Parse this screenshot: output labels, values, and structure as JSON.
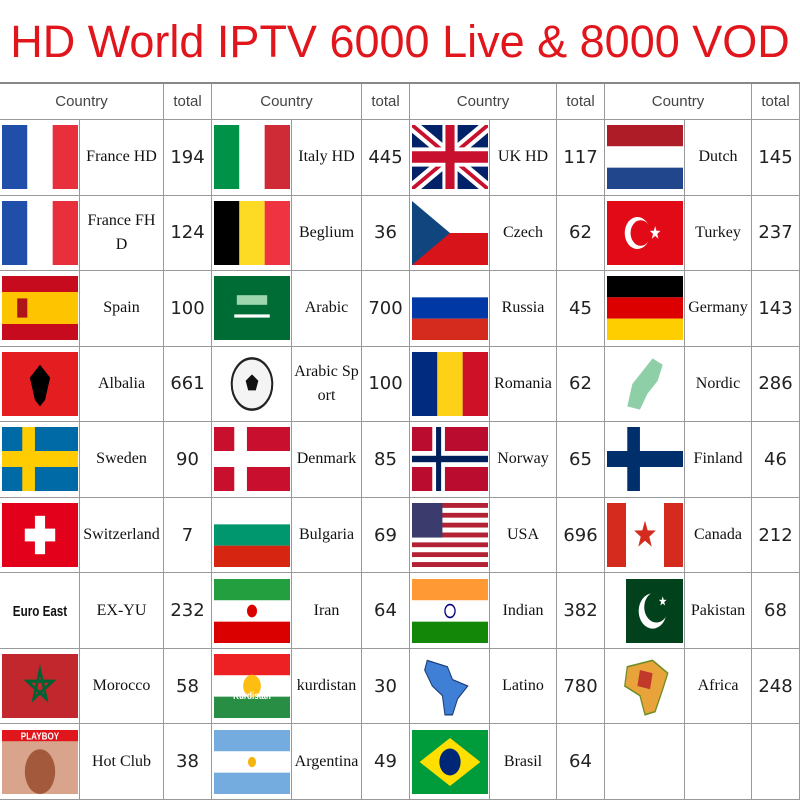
{
  "title": "HD World IPTV 6000 Live & 8000 VOD",
  "groups": [
    {
      "header_country": "Country",
      "header_total": "total",
      "items": [
        {
          "name": "France HD",
          "total": 194
        },
        {
          "name": "France FHD",
          "total": 124
        },
        {
          "name": "Spain",
          "total": 100
        },
        {
          "name": "Albalia",
          "total": 661
        },
        {
          "name": "Sweden",
          "total": 90
        },
        {
          "name": "Switzerland",
          "total": 7
        },
        {
          "flag_text": "Euro East",
          "name": "EX-YU",
          "total": 232
        },
        {
          "name": "Morocco",
          "total": 58
        },
        {
          "flag_text": "PLAYBOY",
          "name": "Hot Club",
          "total": 38
        }
      ]
    },
    {
      "header_country": "Country",
      "header_total": "total",
      "items": [
        {
          "name": "Italy HD",
          "total": 445
        },
        {
          "name": "Beglium",
          "total": 36
        },
        {
          "name": "Arabic",
          "total": 700
        },
        {
          "name": "Arabic Sport",
          "total": 100
        },
        {
          "name": "Denmark",
          "total": 85
        },
        {
          "name": "Bulgaria",
          "total": 69
        },
        {
          "name": "Iran",
          "total": 64
        },
        {
          "flag_text": "Kurdistan",
          "name": "kurdistan",
          "total": 30
        },
        {
          "name": "Argentina",
          "total": 49
        }
      ]
    },
    {
      "header_country": "Country",
      "header_total": "total",
      "items": [
        {
          "name": "UK HD",
          "total": 117
        },
        {
          "name": "Czech",
          "total": 62
        },
        {
          "name": "Russia",
          "total": 45
        },
        {
          "name": "Romania",
          "total": 62
        },
        {
          "name": "Norway",
          "total": 65
        },
        {
          "name": "USA",
          "total": 696
        },
        {
          "name": "Indian",
          "total": 382
        },
        {
          "name": "Latino",
          "total": 780
        },
        {
          "name": "Brasil",
          "total": 64
        }
      ]
    },
    {
      "header_country": "Country",
      "header_total": "total",
      "items": [
        {
          "name": "Dutch",
          "total": 145
        },
        {
          "name": "Turkey",
          "total": 237
        },
        {
          "name": "Germany",
          "total": 143
        },
        {
          "name": "Nordic",
          "total": 286
        },
        {
          "name": "Finland",
          "total": 46
        },
        {
          "name": "Canada",
          "total": 212
        },
        {
          "name": "Pakistan",
          "total": 68
        },
        {
          "name": "Africa",
          "total": 248
        }
      ]
    }
  ]
}
